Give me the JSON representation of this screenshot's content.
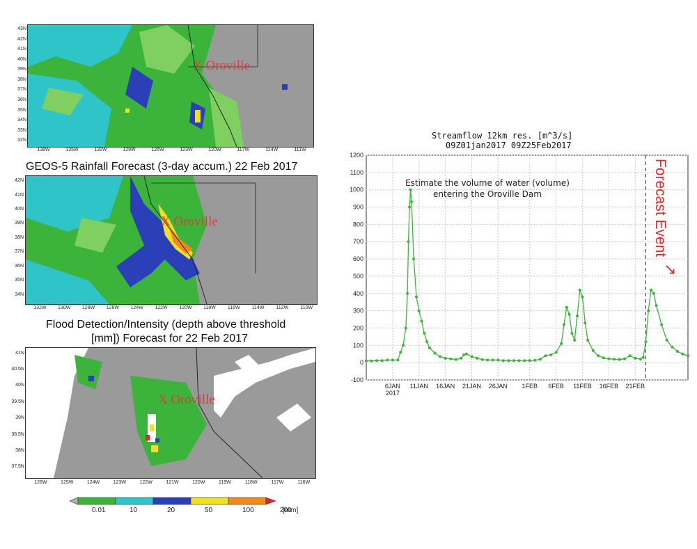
{
  "maps": {
    "map1": {
      "label": "X Oroville",
      "xticks": [
        "138W",
        "135W",
        "132W",
        "129W",
        "126W",
        "123W",
        "120W",
        "117W",
        "114W",
        "111W"
      ],
      "yticks": [
        "43N",
        "42N",
        "41N",
        "40N",
        "39N",
        "38N",
        "37N",
        "36N",
        "35N",
        "34N",
        "33N",
        "32N"
      ]
    },
    "map2": {
      "title": "GEOS-5 Rainfall Forecast (3-day accum.) 22 Feb 2017",
      "label": "X Oroville",
      "xticks": [
        "132W",
        "130W",
        "128W",
        "126W",
        "124W",
        "122W",
        "120W",
        "118W",
        "116W",
        "114W",
        "112W",
        "110W"
      ],
      "yticks": [
        "42N",
        "41N",
        "40N",
        "39N",
        "38N",
        "37N",
        "36N",
        "35N",
        "34N"
      ]
    },
    "map3": {
      "title_line1": "Flood Detection/Intensity (depth above threshold",
      "title_line2": "[mm]) Forecast for 22 Feb 2017",
      "label": "X Oroville",
      "xticks": [
        "126W",
        "125W",
        "124W",
        "123W",
        "122W",
        "121W",
        "120W",
        "119W",
        "118W",
        "117W",
        "116W"
      ],
      "yticks": [
        "41N",
        "40.5N",
        "40N",
        "39.5N",
        "39N",
        "38.5N",
        "38N",
        "37.5N"
      ]
    }
  },
  "colorbar": {
    "ticks": [
      "0.01",
      "10",
      "20",
      "50",
      "100",
      "200"
    ],
    "unit": "[mm]",
    "colors": [
      "#b4b4b4",
      "#3cb43c",
      "#2fc4c8",
      "#2a3fb8",
      "#f0e020",
      "#f08a1e",
      "#e02828"
    ]
  },
  "chart_data": {
    "type": "line",
    "title": "Streamflow 12km res. [m^3/s]",
    "subtitle": "09Z01jan2017 09Z25Feb2017",
    "annotation": "Estimate the volume of water (volume) entering the Oroville Dam",
    "annotation_line1": "Estimate the volume of water (volume)",
    "annotation_line2": "entering the Oroville Dam",
    "event_label": "Forecast Event",
    "event_arrow": "↘",
    "ylim": [
      -100,
      1200
    ],
    "yticks": [
      "1200",
      "1100",
      "1000",
      "900",
      "800",
      "700",
      "600",
      "500",
      "400",
      "300",
      "200",
      "100",
      "0",
      "-100"
    ],
    "xlim_days": [
      1,
      62
    ],
    "xticks": [
      {
        "day": 6,
        "label": "6JAN"
      },
      {
        "day": 11,
        "label": "11JAN"
      },
      {
        "day": 16,
        "label": "16JAN"
      },
      {
        "day": 21,
        "label": "21JAN"
      },
      {
        "day": 26,
        "label": "26JAN"
      },
      {
        "day": 32,
        "label": "1FEB"
      },
      {
        "day": 37,
        "label": "6FEB"
      },
      {
        "day": 42,
        "label": "11FEB"
      },
      {
        "day": 47,
        "label": "16FEB"
      },
      {
        "day": 52,
        "label": "21FEB"
      }
    ],
    "year_label": "2017",
    "event_day": 54,
    "series": [
      {
        "color": "#3cb43c",
        "points": [
          [
            1,
            10
          ],
          [
            2,
            10
          ],
          [
            3,
            12
          ],
          [
            4,
            12
          ],
          [
            5,
            15
          ],
          [
            6,
            15
          ],
          [
            7,
            15
          ],
          [
            7.5,
            60
          ],
          [
            8,
            100
          ],
          [
            8.5,
            200
          ],
          [
            8.8,
            400
          ],
          [
            9,
            700
          ],
          [
            9.2,
            900
          ],
          [
            9.4,
            1000
          ],
          [
            9.6,
            930
          ],
          [
            10,
            600
          ],
          [
            10.5,
            380
          ],
          [
            11,
            300
          ],
          [
            11.5,
            240
          ],
          [
            12,
            170
          ],
          [
            12.5,
            120
          ],
          [
            13,
            85
          ],
          [
            14,
            55
          ],
          [
            15,
            35
          ],
          [
            16,
            25
          ],
          [
            17,
            22
          ],
          [
            18,
            18
          ],
          [
            19,
            25
          ],
          [
            19.5,
            45
          ],
          [
            20,
            50
          ],
          [
            21,
            35
          ],
          [
            22,
            25
          ],
          [
            23,
            18
          ],
          [
            24,
            15
          ],
          [
            25,
            15
          ],
          [
            26,
            15
          ],
          [
            27,
            12
          ],
          [
            28,
            12
          ],
          [
            29,
            12
          ],
          [
            30,
            12
          ],
          [
            31,
            12
          ],
          [
            32,
            12
          ],
          [
            33,
            14
          ],
          [
            34,
            20
          ],
          [
            35,
            40
          ],
          [
            36,
            45
          ],
          [
            37,
            60
          ],
          [
            38,
            110
          ],
          [
            38.5,
            220
          ],
          [
            39,
            320
          ],
          [
            39.5,
            280
          ],
          [
            40,
            170
          ],
          [
            40.5,
            130
          ],
          [
            41,
            270
          ],
          [
            41.5,
            420
          ],
          [
            42,
            380
          ],
          [
            42.5,
            230
          ],
          [
            43,
            130
          ],
          [
            44,
            70
          ],
          [
            45,
            40
          ],
          [
            46,
            28
          ],
          [
            47,
            22
          ],
          [
            48,
            20
          ],
          [
            49,
            18
          ],
          [
            50,
            22
          ],
          [
            51,
            40
          ],
          [
            52,
            25
          ],
          [
            53,
            20
          ],
          [
            53.5,
            30
          ],
          [
            54,
            120
          ],
          [
            54.5,
            300
          ],
          [
            55,
            420
          ],
          [
            55.5,
            400
          ],
          [
            56,
            330
          ],
          [
            57,
            220
          ],
          [
            58,
            130
          ],
          [
            59,
            90
          ],
          [
            60,
            65
          ],
          [
            61,
            50
          ],
          [
            62,
            40
          ]
        ]
      }
    ]
  }
}
